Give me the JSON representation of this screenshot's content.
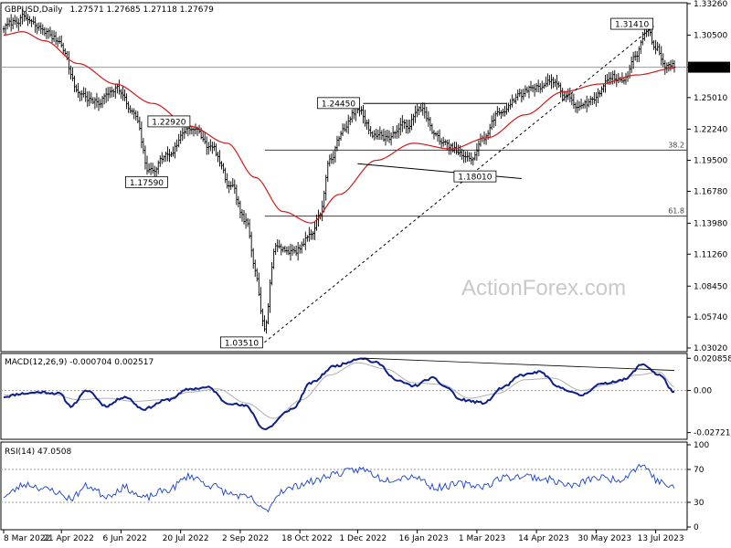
{
  "header": {
    "symbol": "GBPUSD,Daily",
    "ohlc": "1.27571 1.27685 1.27118 1.27679"
  },
  "watermark": "ActionForex.com",
  "colors": {
    "price": "#000000",
    "sma": "#d21a1a",
    "macd": "#0d1f8c",
    "signal": "#b0b0b0",
    "grid": "#9a9a9a",
    "watermark": "#c9c9c9"
  },
  "chart_data": [
    {
      "type": "ohlc",
      "panel": "price",
      "ylim": [
        1.0302,
        1.3326
      ],
      "y_ticks": [
        "1.33260",
        "1.30500",
        "1.27679",
        "1.25010",
        "1.22240",
        "1.19500",
        "1.16780",
        "1.13980",
        "1.11260",
        "1.08450",
        "1.05740",
        "1.03020"
      ],
      "x_ticks": [
        "8 Mar 2022",
        "21 Apr 2022",
        "6 Jun 2022",
        "20 Jul 2022",
        "2 Sep 2022",
        "18 Oct 2022",
        "1 Dec 2022",
        "16 Jan 2023",
        "1 Mar 2023",
        "14 Apr 2023",
        "30 May 2023",
        "13 Jul 2023"
      ],
      "series": [
        {
          "role": "price",
          "anchors": [
            [
              0,
              1.312
            ],
            [
              10,
              1.32
            ],
            [
              20,
              1.31
            ],
            [
              30,
              1.3
            ],
            [
              40,
              1.255
            ],
            [
              50,
              1.245
            ],
            [
              60,
              1.26
            ],
            [
              70,
              1.235
            ],
            [
              78,
              1.185
            ],
            [
              88,
              1.2
            ],
            [
              100,
              1.225
            ],
            [
              112,
              1.205
            ],
            [
              122,
              1.17
            ],
            [
              130,
              1.14
            ],
            [
              135,
              1.1
            ],
            [
              140,
              1.05
            ],
            [
              146,
              1.12
            ],
            [
              156,
              1.115
            ],
            [
              165,
              1.13
            ],
            [
              170,
              1.15
            ],
            [
              175,
              1.195
            ],
            [
              183,
              1.225
            ],
            [
              190,
              1.24
            ],
            [
              198,
              1.22
            ],
            [
              205,
              1.215
            ],
            [
              215,
              1.225
            ],
            [
              225,
              1.24
            ],
            [
              232,
              1.215
            ],
            [
              240,
              1.205
            ],
            [
              250,
              1.195
            ],
            [
              258,
              1.215
            ],
            [
              265,
              1.235
            ],
            [
              275,
              1.25
            ],
            [
              285,
              1.26
            ],
            [
              295,
              1.265
            ],
            [
              303,
              1.25
            ],
            [
              310,
              1.24
            ],
            [
              318,
              1.25
            ],
            [
              325,
              1.27
            ],
            [
              333,
              1.265
            ],
            [
              340,
              1.29
            ],
            [
              345,
              1.31
            ],
            [
              350,
              1.295
            ],
            [
              355,
              1.28
            ],
            [
              360,
              1.277
            ]
          ],
          "close": 1.27679
        },
        {
          "role": "sma",
          "anchors": [
            [
              0,
              1.305
            ],
            [
              10,
              1.308
            ],
            [
              22,
              1.3
            ],
            [
              40,
              1.28
            ],
            [
              60,
              1.262
            ],
            [
              80,
              1.245
            ],
            [
              100,
              1.225
            ],
            [
              120,
              1.21
            ],
            [
              135,
              1.18
            ],
            [
              150,
              1.15
            ],
            [
              165,
              1.14
            ],
            [
              180,
              1.165
            ],
            [
              200,
              1.195
            ],
            [
              220,
              1.21
            ],
            [
              240,
              1.205
            ],
            [
              260,
              1.215
            ],
            [
              280,
              1.235
            ],
            [
              300,
              1.255
            ],
            [
              320,
              1.262
            ],
            [
              340,
              1.27
            ],
            [
              360,
              1.276
            ]
          ]
        }
      ],
      "levels": [
        {
          "label": "38.2",
          "value": 1.204
        },
        {
          "label": "61.8",
          "value": 1.146
        }
      ],
      "trendlines": [
        {
          "style": "solid",
          "points": [
            [
              193,
              1.245
            ],
            [
              270,
              1.245
            ]
          ]
        },
        {
          "style": "solid",
          "points": [
            [
              190,
              1.192
            ],
            [
              278,
              1.179
            ]
          ]
        },
        {
          "style": "dashed",
          "points": [
            [
              140,
              1.0351
            ],
            [
              350,
              1.3141
            ]
          ]
        }
      ],
      "annotations": [
        {
          "label": "1.31410",
          "x": 350,
          "y": 1.3141
        },
        {
          "label": "1.24450",
          "x": 193,
          "y": 1.2445
        },
        {
          "label": "1.22920",
          "x": 100,
          "y": 1.2292
        },
        {
          "label": "1.17590",
          "x": 88,
          "y": 1.1759
        },
        {
          "label": "1.18010",
          "x": 255,
          "y": 1.1801
        },
        {
          "label": "1.03510",
          "x": 140,
          "y": 1.0351
        }
      ]
    },
    {
      "type": "line",
      "panel": "macd",
      "title": "MACD(12,26,9) -0.000704 0.002517",
      "ylim": [
        -0.0298,
        0.0228
      ],
      "y_ticks": [
        "0.020858",
        "0.00",
        "-0.027213"
      ],
      "series": [
        {
          "role": "macd",
          "anchors": [
            [
              0,
              -0.004
            ],
            [
              10,
              -0.002
            ],
            [
              20,
              -0.001
            ],
            [
              30,
              -0.002
            ],
            [
              36,
              -0.01
            ],
            [
              45,
              0.0
            ],
            [
              55,
              -0.01
            ],
            [
              65,
              -0.004
            ],
            [
              75,
              -0.012
            ],
            [
              88,
              -0.006
            ],
            [
              100,
              0.001
            ],
            [
              110,
              0.002
            ],
            [
              120,
              -0.008
            ],
            [
              130,
              -0.01
            ],
            [
              140,
              -0.025
            ],
            [
              155,
              -0.012
            ],
            [
              165,
              0.005
            ],
            [
              178,
              0.016
            ],
            [
              192,
              0.021
            ],
            [
              200,
              0.018
            ],
            [
              212,
              0.006
            ],
            [
              220,
              0.003
            ],
            [
              230,
              0.008
            ],
            [
              238,
              0.002
            ],
            [
              245,
              -0.006
            ],
            [
              258,
              -0.008
            ],
            [
              268,
              0.002
            ],
            [
              278,
              0.01
            ],
            [
              288,
              0.012
            ],
            [
              298,
              0.002
            ],
            [
              310,
              -0.003
            ],
            [
              320,
              0.004
            ],
            [
              333,
              0.007
            ],
            [
              343,
              0.017
            ],
            [
              352,
              0.01
            ],
            [
              360,
              -0.001
            ]
          ],
          "last": -0.000704
        },
        {
          "role": "signal",
          "anchors": [
            [
              0,
              -0.003
            ],
            [
              12,
              -0.002
            ],
            [
              25,
              -0.002
            ],
            [
              40,
              -0.006
            ],
            [
              55,
              -0.005
            ],
            [
              70,
              -0.007
            ],
            [
              85,
              -0.006
            ],
            [
              100,
              -0.001
            ],
            [
              115,
              0.001
            ],
            [
              130,
              -0.008
            ],
            [
              145,
              -0.018
            ],
            [
              160,
              -0.006
            ],
            [
              175,
              0.01
            ],
            [
              190,
              0.018
            ],
            [
              205,
              0.014
            ],
            [
              220,
              0.005
            ],
            [
              235,
              0.004
            ],
            [
              250,
              -0.005
            ],
            [
              265,
              -0.002
            ],
            [
              280,
              0.007
            ],
            [
              295,
              0.008
            ],
            [
              310,
              0.0
            ],
            [
              325,
              0.004
            ],
            [
              340,
              0.01
            ],
            [
              352,
              0.012
            ],
            [
              360,
              0.0025
            ]
          ],
          "last": 0.002517
        }
      ],
      "trendlines": [
        {
          "style": "solid",
          "points": [
            [
              192,
              0.021
            ],
            [
              360,
              0.013
            ]
          ]
        }
      ]
    },
    {
      "type": "line",
      "panel": "rsi",
      "title": "RSI(14) 47.0508",
      "ylim": [
        0,
        100
      ],
      "y_ticks": [
        "100",
        "70",
        "30",
        "0"
      ],
      "levels": [
        {
          "value": 70
        },
        {
          "value": 30
        }
      ],
      "series": [
        {
          "role": "rsi",
          "anchors": [
            [
              0,
              38
            ],
            [
              12,
              52
            ],
            [
              25,
              45
            ],
            [
              36,
              35
            ],
            [
              45,
              50
            ],
            [
              55,
              38
            ],
            [
              65,
              48
            ],
            [
              75,
              35
            ],
            [
              88,
              45
            ],
            [
              100,
              62
            ],
            [
              112,
              50
            ],
            [
              122,
              40
            ],
            [
              132,
              35
            ],
            [
              140,
              20
            ],
            [
              150,
              45
            ],
            [
              165,
              55
            ],
            [
              178,
              65
            ],
            [
              192,
              70
            ],
            [
              205,
              58
            ],
            [
              220,
              62
            ],
            [
              232,
              48
            ],
            [
              245,
              52
            ],
            [
              258,
              50
            ],
            [
              268,
              60
            ],
            [
              280,
              62
            ],
            [
              292,
              58
            ],
            [
              305,
              50
            ],
            [
              318,
              60
            ],
            [
              330,
              58
            ],
            [
              343,
              75
            ],
            [
              352,
              55
            ],
            [
              360,
              47
            ]
          ],
          "last": 47.0508
        }
      ]
    }
  ]
}
